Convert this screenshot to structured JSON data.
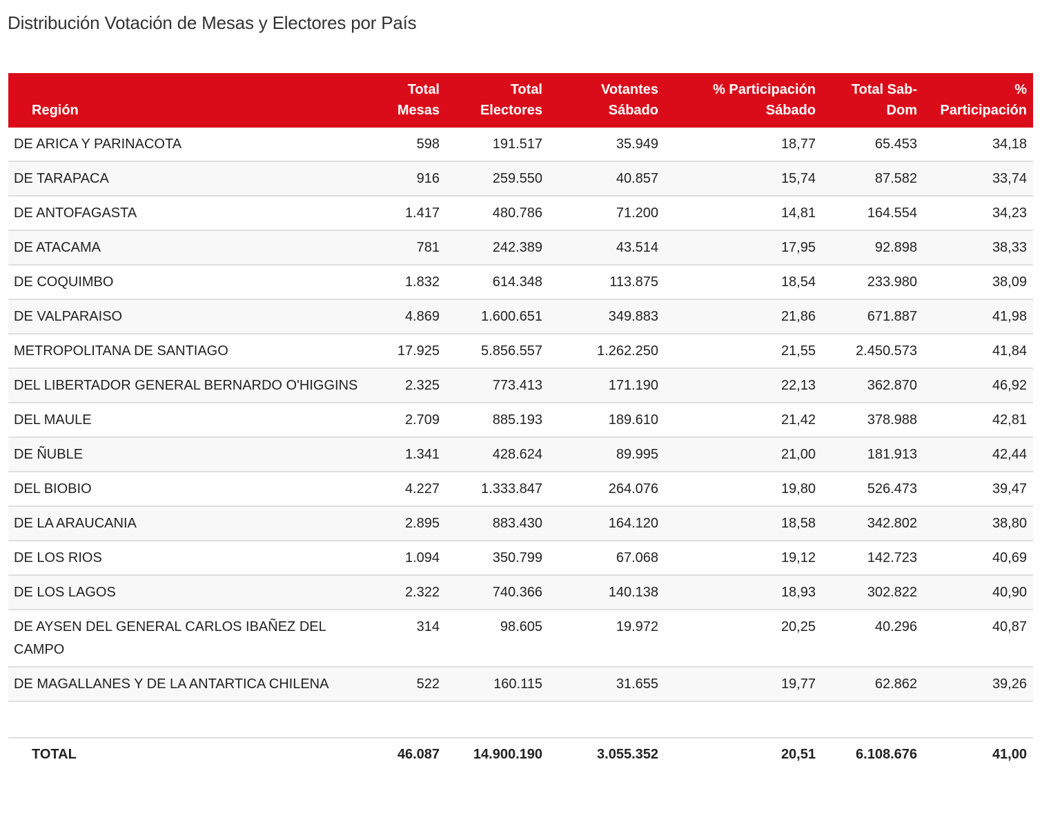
{
  "title": "Distribución Votación de Mesas y Electores por País",
  "headers": [
    [
      "Región"
    ],
    [
      "Total",
      "Mesas"
    ],
    [
      "Total",
      "Electores"
    ],
    [
      "Votantes",
      "Sábado"
    ],
    [
      "% Participación",
      "Sábado"
    ],
    [
      "Total Sab-",
      "Dom"
    ],
    [
      "%",
      "Participación"
    ]
  ],
  "rows": [
    [
      "DE ARICA Y PARINACOTA",
      "598",
      "191.517",
      "35.949",
      "18,77",
      "65.453",
      "34,18"
    ],
    [
      "DE TARAPACA",
      "916",
      "259.550",
      "40.857",
      "15,74",
      "87.582",
      "33,74"
    ],
    [
      "DE ANTOFAGASTA",
      "1.417",
      "480.786",
      "71.200",
      "14,81",
      "164.554",
      "34,23"
    ],
    [
      "DE ATACAMA",
      "781",
      "242.389",
      "43.514",
      "17,95",
      "92.898",
      "38,33"
    ],
    [
      "DE COQUIMBO",
      "1.832",
      "614.348",
      "113.875",
      "18,54",
      "233.980",
      "38,09"
    ],
    [
      "DE VALPARAISO",
      "4.869",
      "1.600.651",
      "349.883",
      "21,86",
      "671.887",
      "41,98"
    ],
    [
      "METROPOLITANA DE SANTIAGO",
      "17.925",
      "5.856.557",
      "1.262.250",
      "21,55",
      "2.450.573",
      "41,84"
    ],
    [
      "DEL LIBERTADOR GENERAL BERNARDO O'HIGGINS",
      "2.325",
      "773.413",
      "171.190",
      "22,13",
      "362.870",
      "46,92"
    ],
    [
      "DEL MAULE",
      "2.709",
      "885.193",
      "189.610",
      "21,42",
      "378.988",
      "42,81"
    ],
    [
      "DE ÑUBLE",
      "1.341",
      "428.624",
      "89.995",
      "21,00",
      "181.913",
      "42,44"
    ],
    [
      "DEL BIOBIO",
      "4.227",
      "1.333.847",
      "264.076",
      "19,80",
      "526.473",
      "39,47"
    ],
    [
      "DE LA ARAUCANIA",
      "2.895",
      "883.430",
      "164.120",
      "18,58",
      "342.802",
      "38,80"
    ],
    [
      "DE LOS RIOS",
      "1.094",
      "350.799",
      "67.068",
      "19,12",
      "142.723",
      "40,69"
    ],
    [
      "DE LOS LAGOS",
      "2.322",
      "740.366",
      "140.138",
      "18,93",
      "302.822",
      "40,90"
    ],
    [
      "DE AYSEN DEL GENERAL CARLOS IBAÑEZ DEL CAMPO",
      "314",
      "98.605",
      "19.972",
      "20,25",
      "40.296",
      "40,87"
    ],
    [
      "DE MAGALLANES Y DE LA ANTARTICA CHILENA",
      "522",
      "160.115",
      "31.655",
      "19,77",
      "62.862",
      "39,26"
    ]
  ],
  "total": [
    "TOTAL",
    "46.087",
    "14.900.190",
    "3.055.352",
    "20,51",
    "6.108.676",
    "41,00"
  ],
  "colors": {
    "header_bg": "#db0c1a",
    "row_alt": "#f8f8f8"
  }
}
